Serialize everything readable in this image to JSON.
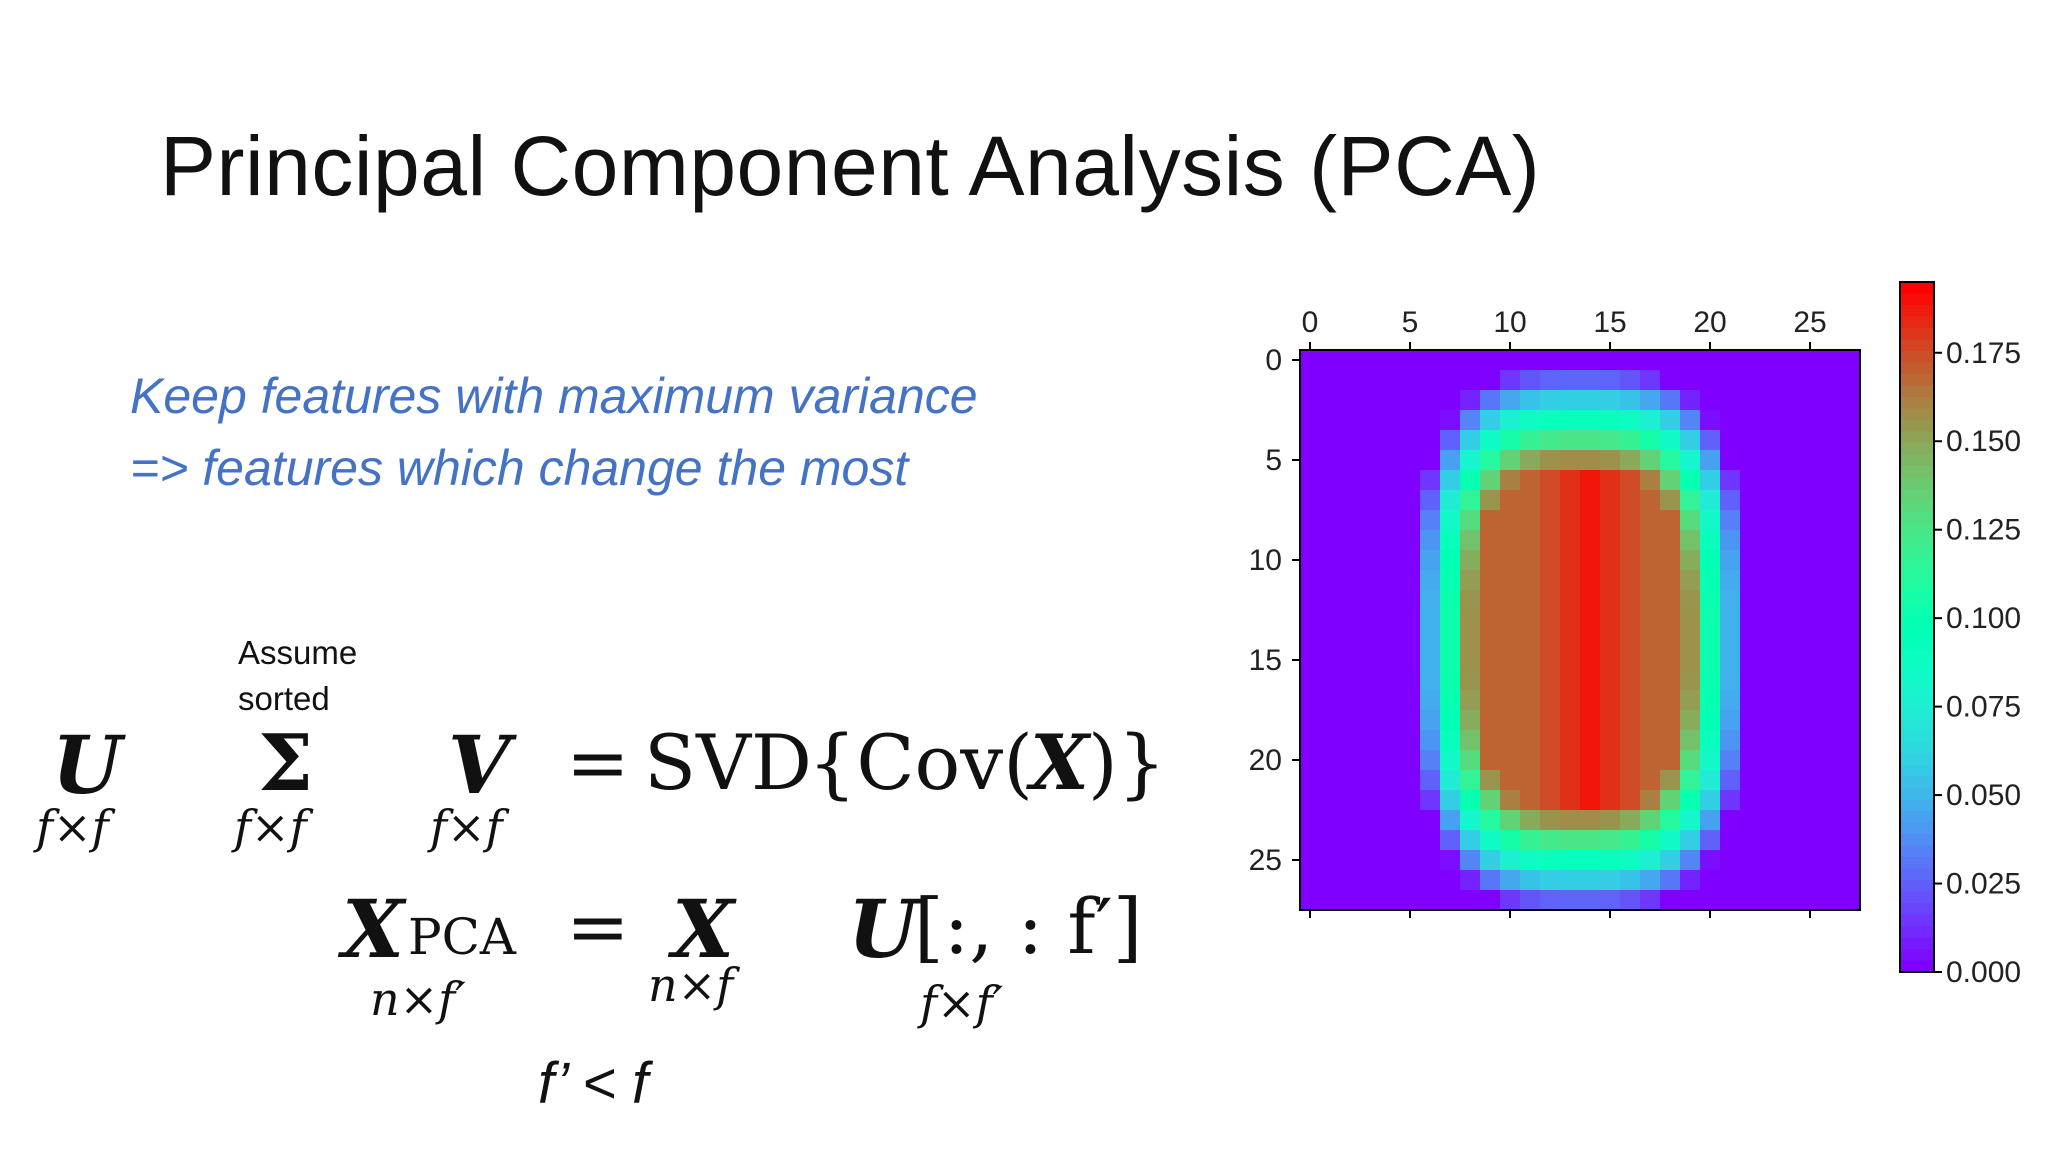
{
  "slide": {
    "title": "Principal Component Analysis (PCA)",
    "subtitle_line1": "Keep features with maximum variance",
    "subtitle_line2": "=> features which change the most",
    "note_line1": "Assume",
    "note_line2": "sorted",
    "condition": "f’ < f"
  },
  "equations": {
    "svd": {
      "U": "U",
      "U_sub": "f×f",
      "Sigma": "Σ",
      "Sigma_sub": "f×f",
      "V": "V",
      "V_sub": "f×f",
      "rhs_eq": "=",
      "rhs_svd": "SVD",
      "rhs_open": "{Cov(",
      "rhs_X": "X",
      "rhs_close": ")}"
    },
    "pca": {
      "X": "X",
      "X_subscript": "PCA",
      "X_sub": "n×f′",
      "eq": "=",
      "X2": "X",
      "X2_sub": "n×f",
      "U": "U",
      "U_index": "[:, : f′]",
      "U_sub": "f×f′"
    }
  },
  "chart_data": {
    "type": "heatmap",
    "colormap": "rainbow",
    "x_ticks": [
      "0",
      "5",
      "10",
      "15",
      "20",
      "25"
    ],
    "y_ticks": [
      "0",
      "5",
      "10",
      "15",
      "20",
      "25"
    ],
    "x_axis_position": "top",
    "grid": false,
    "colorbar_ticks": [
      "0.000",
      "0.025",
      "0.050",
      "0.075",
      "0.100",
      "0.125",
      "0.150",
      "0.175"
    ],
    "value_range": [
      0,
      0.195
    ],
    "size": [
      28,
      28
    ],
    "shape": {
      "description_values": "outer ring low, inner oval high",
      "center_col": 13.5,
      "center_row": 14,
      "half_width": 6.2,
      "half_height": 10.2
    }
  }
}
